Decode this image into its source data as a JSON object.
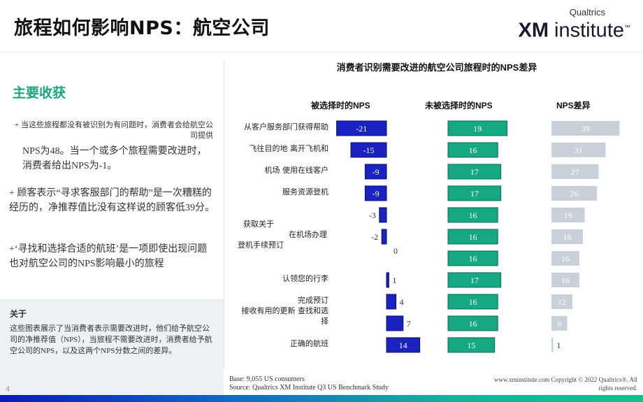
{
  "page": {
    "title": "旅程如何影响NPS：航空公司",
    "page_number": "4"
  },
  "logo": {
    "small": "Qualtrics",
    "big_bold": "XM",
    "big_rest": " institute",
    "tm": "™"
  },
  "left": {
    "heading": "主要收获",
    "p1a": "+ 当这些旅程都没有被识别为有问题时，消费者会给航空公司提供",
    "p1b": "NPS为48。当一个或多个旅程需要改进时，消费者给出NPS为-1。",
    "p2": "+ 顾客表示“寻求客服部门的帮助”是一次糟糕的经历的，净推荐值比没有这样说的顾客低39分。",
    "p3": "+‘寻找和选择合适的航班’是一项即使出现问题也对航空公司的NPS影响最小的旅程",
    "about_heading": "关于",
    "about_text": "这些图表展示了当消费者表示需要改进时，他们给予航空公司的净推荐值（NPS），当旅程不需要改进时，消费者给予航空公司的NPS，以及这两个NPS分数之间的差异。"
  },
  "footer": {
    "left_line1": "Base: 9,055 US consumers",
    "left_line2": "Source: Qualtrics XM Institute Q3 US Benchmark Study",
    "right_line1": "www.xminstitute.com Copyright © 2022 Qualtrics®. All",
    "right_line2": "rights reserved."
  },
  "colors": {
    "selected_bar": "#1a22c0",
    "not_selected_bar": "#15a882",
    "diff_bar": "#c9d0d8",
    "accent_green": "#1aa67a"
  },
  "chart_data": {
    "type": "bar",
    "title": "消费者识别需要改进的航空公司旅程时的NPS差异",
    "categories": [
      [
        "从客户服务部门获得帮助"
      ],
      [
        "飞往目的地 离开飞机和"
      ],
      [
        "机场 使用在线客户"
      ],
      [
        "服务资源登机"
      ],
      [],
      [
        "获取关于",
        "在机场办理",
        "登机手续预订"
      ],
      [],
      [
        "认领您的行李"
      ],
      [
        "完成预订"
      ],
      [
        "接收有用的更新 查找和选",
        "择"
      ],
      [
        "正确的航班"
      ]
    ],
    "series": [
      {
        "name": "被选择时的NPS",
        "values": [
          -21,
          -15,
          -9,
          -9,
          -3,
          -2,
          0,
          1,
          4,
          7,
          14
        ]
      },
      {
        "name": "未被选择时的NPS",
        "values": [
          19,
          16,
          17,
          17,
          16,
          16,
          16,
          17,
          16,
          16,
          15
        ]
      },
      {
        "name": "NPS差异",
        "values": [
          39,
          31,
          27,
          26,
          19,
          18,
          16,
          16,
          12,
          9,
          1
        ]
      }
    ]
  }
}
